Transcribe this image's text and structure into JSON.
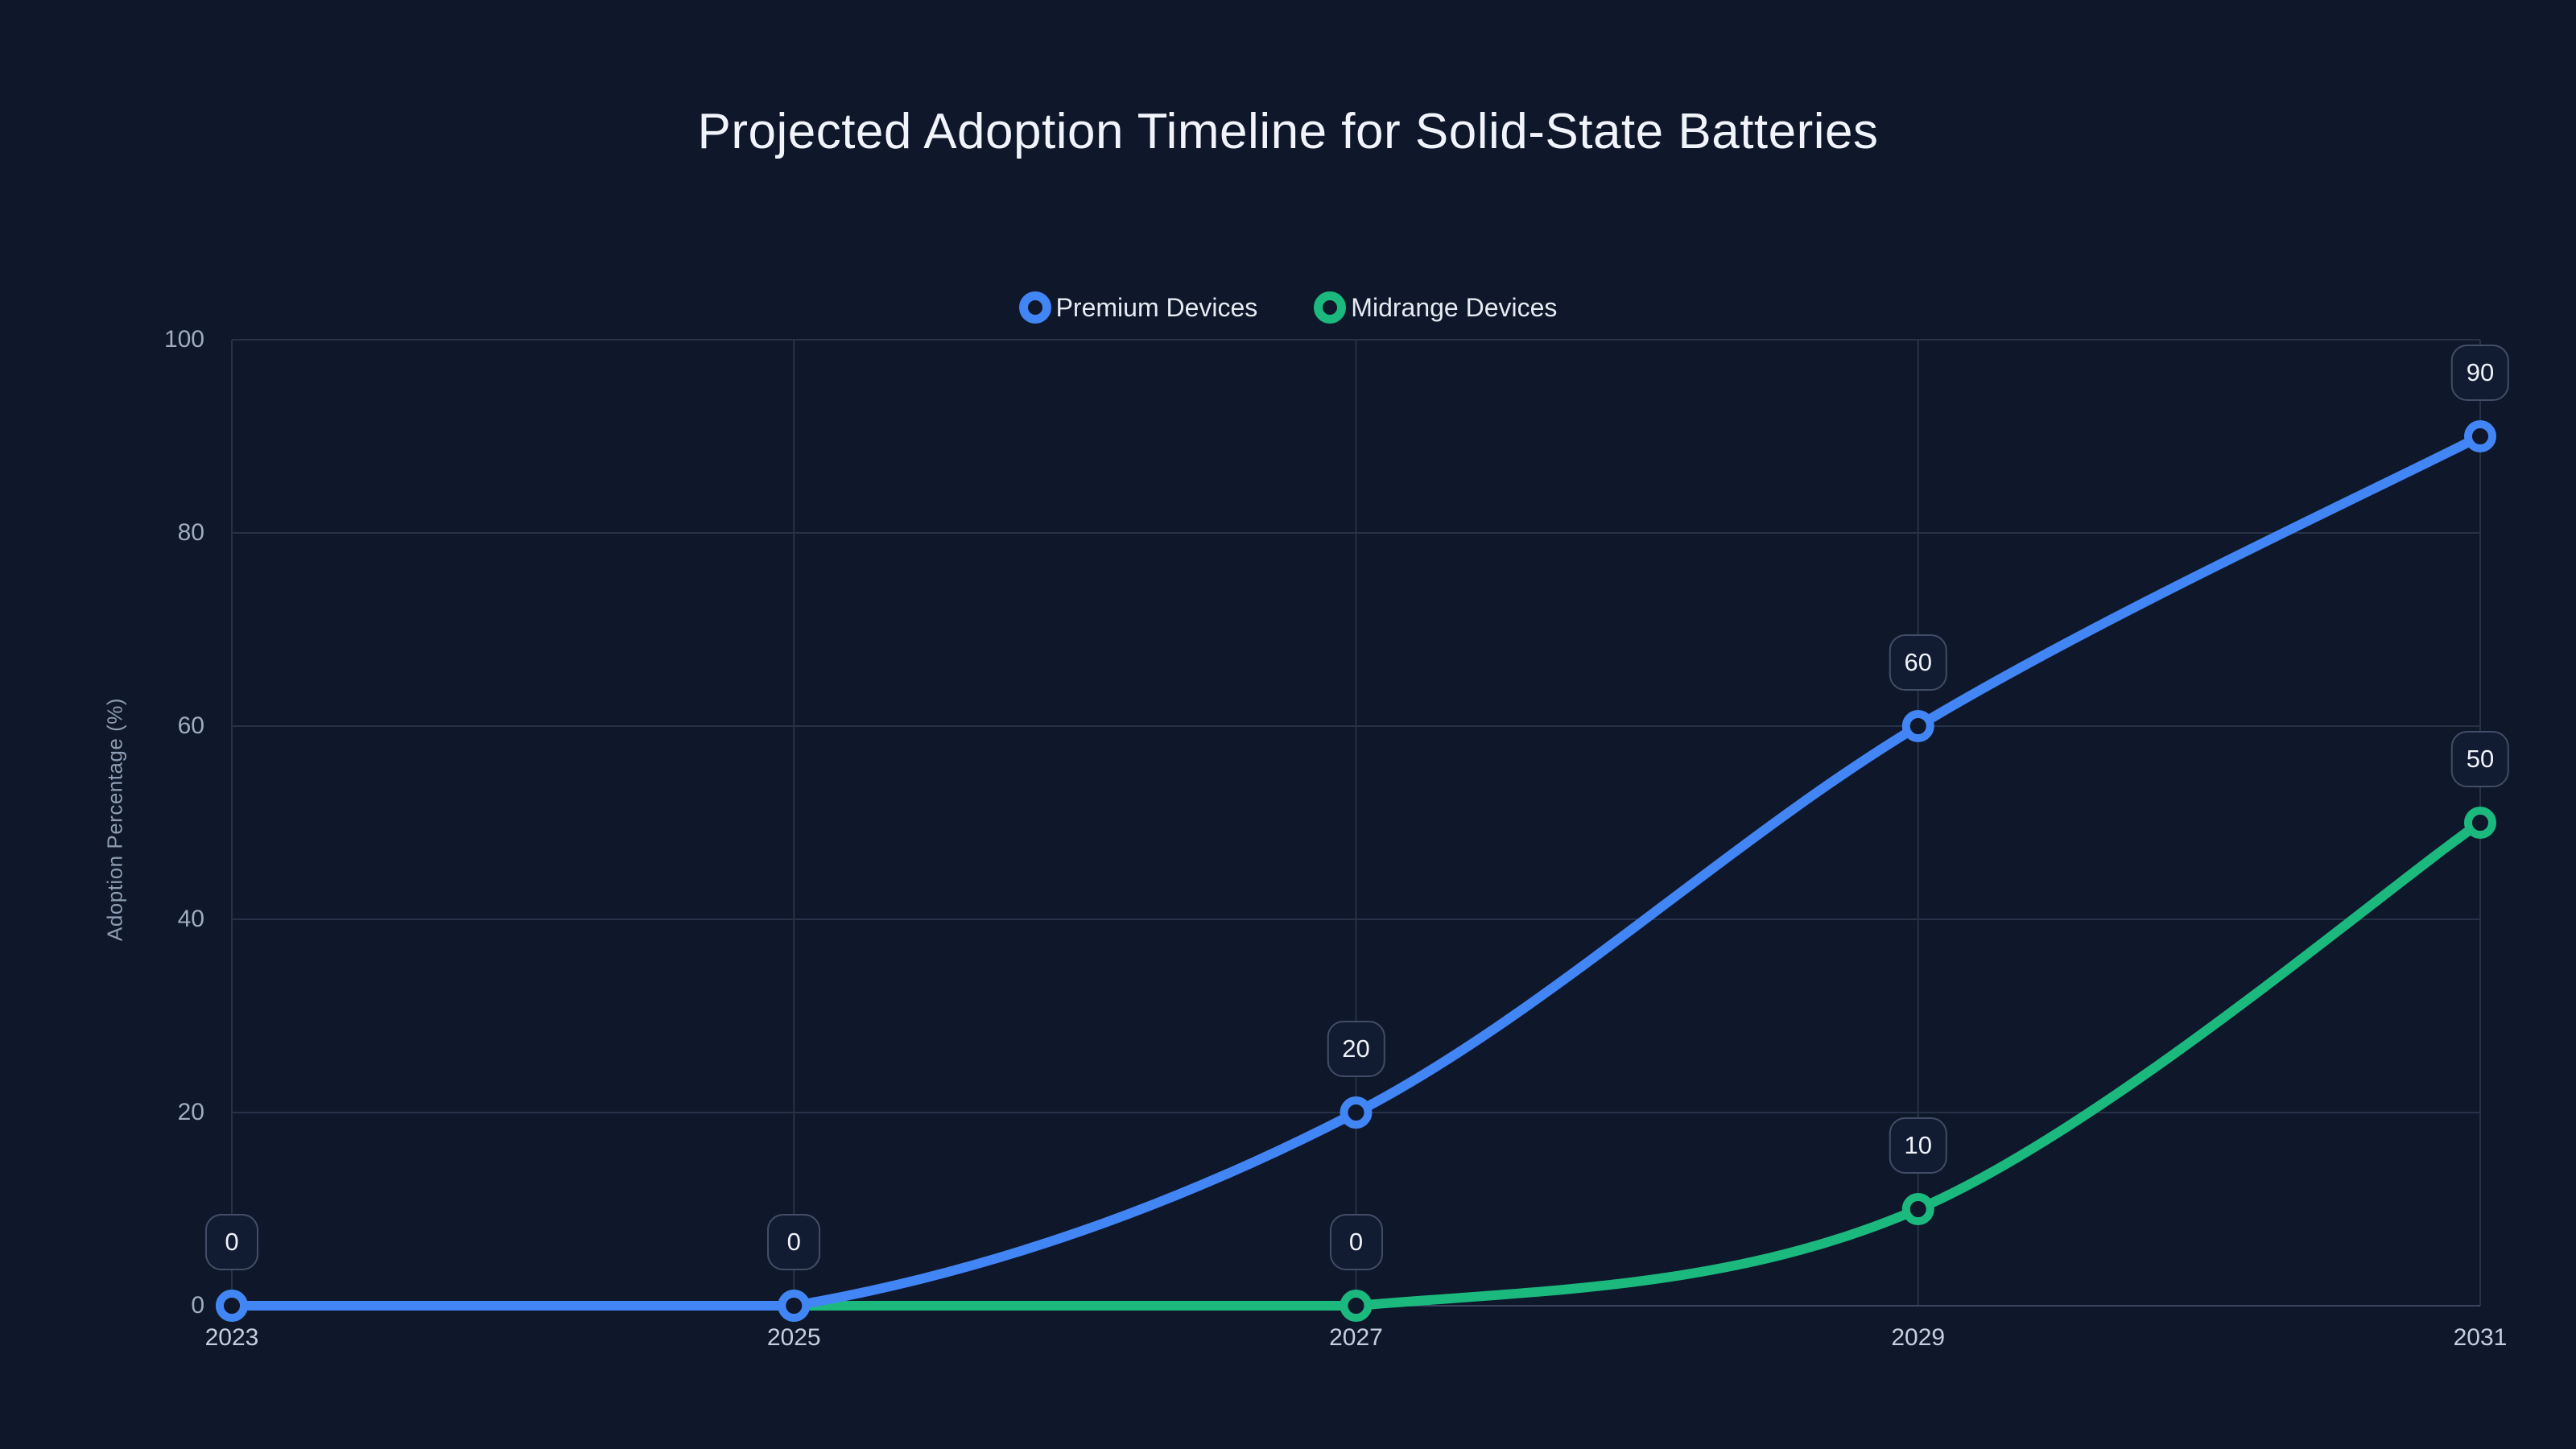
{
  "page": {
    "background": "#0f172a"
  },
  "chart_data": {
    "type": "line",
    "title": "Projected Adoption Timeline for Solid-State Batteries",
    "x": [
      2023,
      2025,
      2027,
      2029,
      2031
    ],
    "series": [
      {
        "name": "Premium Devices",
        "color": "#4285f5",
        "values": [
          0,
          0,
          20,
          60,
          90
        ]
      },
      {
        "name": "Midrange Devices",
        "color": "#1bb97e",
        "values": [
          0,
          0,
          0,
          10,
          50
        ]
      }
    ],
    "xlabel": "",
    "ylabel": "Adoption Percentage (%)",
    "ylim": [
      0,
      100
    ],
    "ytick_step": 20,
    "grid": true,
    "legend_position": "top",
    "smooth": true,
    "point_labels_shown": true,
    "point_label_values": {
      "Premium Devices": [
        "0",
        "0",
        "20",
        "60",
        "90"
      ],
      "Midrange Devices": [
        "0",
        "0",
        "0",
        "10",
        "50"
      ]
    },
    "styles": {
      "background": "#0f172a",
      "grid_color": "#273248",
      "axis_line_color": "#3a4660",
      "xtick_color": "#c5cfdc",
      "ytick_color": "#9fadc0",
      "ytitle_color": "#8d9cb2",
      "badge_bg": "#111b31",
      "badge_border": "#414d66",
      "badge_text": "#eef2f8",
      "point_fill": "#0f172a",
      "title_color": "#f1f5fb",
      "legend_text_color": "#e6ebf2"
    }
  }
}
